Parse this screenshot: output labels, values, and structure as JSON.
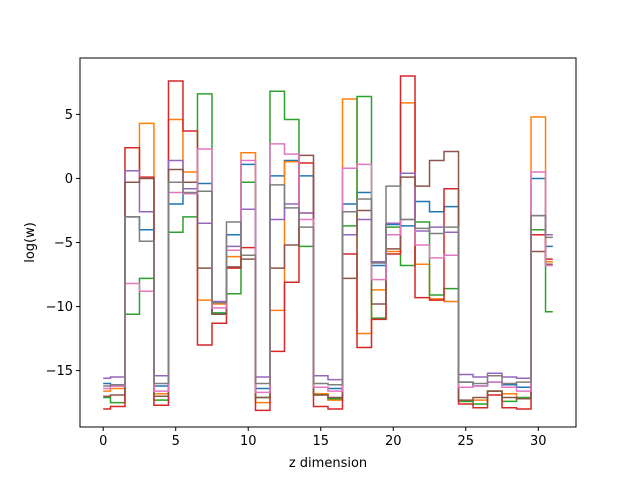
{
  "chart_data": {
    "type": "line",
    "drawstyle": "steps-mid",
    "title": "",
    "xlabel": "z dimension",
    "ylabel": "log(w)",
    "xlim": [
      -1.6,
      32.6
    ],
    "ylim": [
      -19.4,
      9.4
    ],
    "xticks": [
      0,
      5,
      10,
      15,
      20,
      25,
      30
    ],
    "yticks": [
      -15,
      -10,
      -5,
      0,
      5
    ],
    "grid": false,
    "legend": "none",
    "x": [
      0,
      1,
      2,
      3,
      4,
      5,
      6,
      7,
      8,
      9,
      10,
      11,
      12,
      13,
      14,
      15,
      16,
      17,
      18,
      19,
      20,
      21,
      22,
      23,
      24,
      25,
      26,
      27,
      28,
      29,
      30,
      31
    ],
    "series": [
      {
        "color": "#1f77b4",
        "values": [
          -16,
          -16.2,
          -3,
          -4,
          -16.2,
          -2,
          -0.8,
          -0.4,
          -10.5,
          -4.4,
          1.1,
          -16.4,
          0.2,
          1.4,
          0.2,
          -16.3,
          -16.4,
          -2,
          -1.1,
          -6.8,
          -3.6,
          -3.7,
          -1.8,
          -2.6,
          -2.2,
          -15.9,
          -16.2,
          -15.9,
          -16.1,
          -16.3,
          0,
          -5.3
        ]
      },
      {
        "color": "#ff7f0e",
        "values": [
          -16.6,
          -16.4,
          0.6,
          4.3,
          -16.8,
          4.6,
          0.5,
          -9.5,
          -9.8,
          -6.1,
          2.0,
          -17.5,
          -10.3,
          1.3,
          -2.7,
          -16.8,
          -17.3,
          6.2,
          -12.1,
          -8.7,
          -5.7,
          5.9,
          -6.7,
          -9.4,
          -9.6,
          -17.4,
          -17.3,
          -16.6,
          -16.8,
          -17.2,
          4.8,
          -6.5
        ]
      },
      {
        "color": "#2ca02c",
        "values": [
          -17.1,
          -17.5,
          -10.6,
          -7.8,
          -17.3,
          -4.2,
          -3.0,
          6.6,
          -10.5,
          -9.0,
          -0.3,
          -17.1,
          6.8,
          4.6,
          -5.3,
          -16.9,
          -17.2,
          -3.7,
          6.4,
          -10.9,
          -3.8,
          -6.8,
          -3.4,
          -9.1,
          -8.6,
          -17.4,
          -17.6,
          -16.6,
          -17.4,
          -17.1,
          -4.0,
          -10.4
        ]
      },
      {
        "color": "#d62728",
        "values": [
          -18.0,
          -17.8,
          2.4,
          0.1,
          -17.7,
          7.6,
          3.7,
          -13.0,
          -11.3,
          -7.0,
          -5.4,
          -18.1,
          -13.5,
          -8.1,
          1.2,
          -17.8,
          -18.0,
          -5.9,
          -13.2,
          -11.0,
          -5.9,
          8.0,
          -9.3,
          -9.5,
          -0.8,
          -17.6,
          -17.9,
          -16.9,
          -17.9,
          -18.0,
          -4.4,
          -6.3
        ]
      },
      {
        "color": "#9467bd",
        "values": [
          -15.6,
          -15.5,
          0.6,
          -2.6,
          -15.4,
          1.4,
          -0.8,
          -3.5,
          -9.6,
          -5.3,
          -2.4,
          -15.5,
          -3.2,
          -2.0,
          -2.7,
          -15.4,
          -15.7,
          -4.4,
          -3.2,
          -6.5,
          -3.5,
          0.4,
          -4.1,
          -3.8,
          -4.2,
          -15.3,
          -15.5,
          -15.2,
          -15.5,
          -15.6,
          -2.9,
          -4.4
        ]
      },
      {
        "color": "#8c564b",
        "values": [
          -17.0,
          -16.9,
          -0.3,
          0.0,
          -17.0,
          0.7,
          -0.3,
          -7.0,
          -10.6,
          -6.9,
          -6.3,
          -17.1,
          -7.0,
          -5.2,
          1.8,
          -16.9,
          -17.1,
          -7.8,
          -2.5,
          -9.8,
          -5.5,
          0.1,
          -0.6,
          1.4,
          2.1,
          -17.3,
          -17.1,
          -16.6,
          -17.1,
          -17.2,
          -5.7,
          -6.7
        ]
      },
      {
        "color": "#e377c2",
        "values": [
          -16.4,
          -16.2,
          -8.2,
          -8.8,
          -16.6,
          -1.1,
          -1.2,
          2.3,
          -10.1,
          -5.6,
          1.4,
          -16.7,
          2.7,
          1.9,
          -3.2,
          -16.3,
          -16.6,
          0.8,
          1.1,
          -7.9,
          -4.4,
          -3.2,
          -5.2,
          -6.2,
          -6.0,
          -16.3,
          -16.2,
          -15.9,
          -16.3,
          -16.6,
          0.5,
          -6.8
        ]
      },
      {
        "color": "#7f7f7f",
        "values": [
          -16.2,
          -16.1,
          -3.0,
          -4.9,
          -16.0,
          -0.3,
          -1.1,
          -1.0,
          -9.7,
          -3.4,
          -6.0,
          -16.0,
          -0.5,
          -2.3,
          -3.8,
          -16.0,
          -16.1,
          -2.6,
          -1.6,
          -6.6,
          -0.6,
          -3.2,
          -3.9,
          -4.3,
          -3.8,
          -15.9,
          -16.0,
          -15.4,
          -16.0,
          -15.9,
          -2.9,
          -4.6
        ]
      }
    ]
  }
}
